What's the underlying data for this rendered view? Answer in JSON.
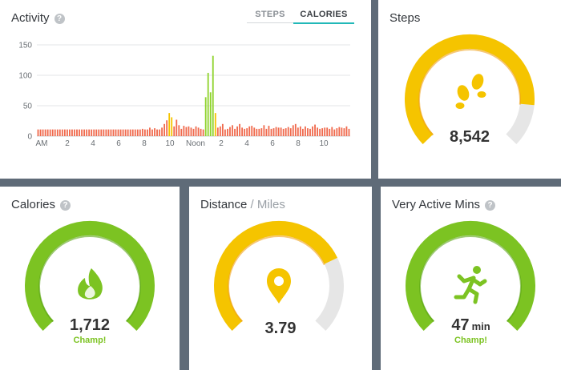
{
  "activity": {
    "title": "Activity",
    "tabs": [
      "STEPS",
      "CALORIES"
    ],
    "active_tab": "CALORIES"
  },
  "chart_data": {
    "type": "bar",
    "title": "Activity",
    "yticks": [
      0,
      50,
      100,
      150
    ],
    "ylim": [
      0,
      150
    ],
    "xtick_labels": [
      "AM",
      "2",
      "4",
      "6",
      "8",
      "10",
      "Noon",
      "2",
      "4",
      "6",
      "8",
      "10"
    ],
    "grid": true,
    "legend": "none",
    "colors": {
      "low": "#f06a4d",
      "high": "#8fd32c",
      "mid": "#f5c400"
    },
    "values": [
      11,
      11,
      11,
      11,
      11,
      11,
      11,
      11,
      11,
      11,
      11,
      11,
      11,
      11,
      11,
      11,
      11,
      11,
      11,
      11,
      11,
      11,
      11,
      11,
      11,
      11,
      11,
      11,
      11,
      11,
      11,
      11,
      11,
      11,
      11,
      11,
      11,
      11,
      11,
      11,
      11,
      11,
      11,
      12,
      11,
      11,
      14,
      11,
      13,
      11,
      11,
      14,
      20,
      26,
      38,
      31,
      16,
      27,
      18,
      12,
      17,
      15,
      16,
      14,
      12,
      16,
      14,
      12,
      11,
      64,
      104,
      72,
      132,
      38,
      14,
      16,
      20,
      11,
      12,
      15,
      18,
      12,
      16,
      20,
      14,
      12,
      13,
      16,
      17,
      14,
      12,
      12,
      13,
      18,
      12,
      17,
      12,
      13,
      15,
      14,
      14,
      12,
      13,
      15,
      13,
      18,
      20,
      14,
      16,
      12,
      16,
      13,
      12,
      16,
      19,
      14,
      12,
      13,
      14,
      14,
      12,
      15,
      11,
      13,
      15,
      14,
      13,
      16,
      12
    ]
  },
  "steps": {
    "title": "Steps",
    "value": "8,542",
    "progress": 0.855,
    "icon": "footprints-icon",
    "color": "#f5c400"
  },
  "calories": {
    "title": "Calories",
    "value": "1,712",
    "status": "Champ!",
    "progress": 1.0,
    "icon": "flame-icon",
    "color": "#7cc322"
  },
  "distance": {
    "title": "Distance",
    "unit_label": "/ Miles",
    "value": "3.79",
    "progress": 0.74,
    "icon": "location-pin-icon",
    "color": "#f5c400"
  },
  "active_mins": {
    "title": "Very Active Mins",
    "value": "47",
    "unit": "min",
    "status": "Champ!",
    "progress": 1.0,
    "icon": "runner-icon",
    "color": "#7cc322"
  }
}
